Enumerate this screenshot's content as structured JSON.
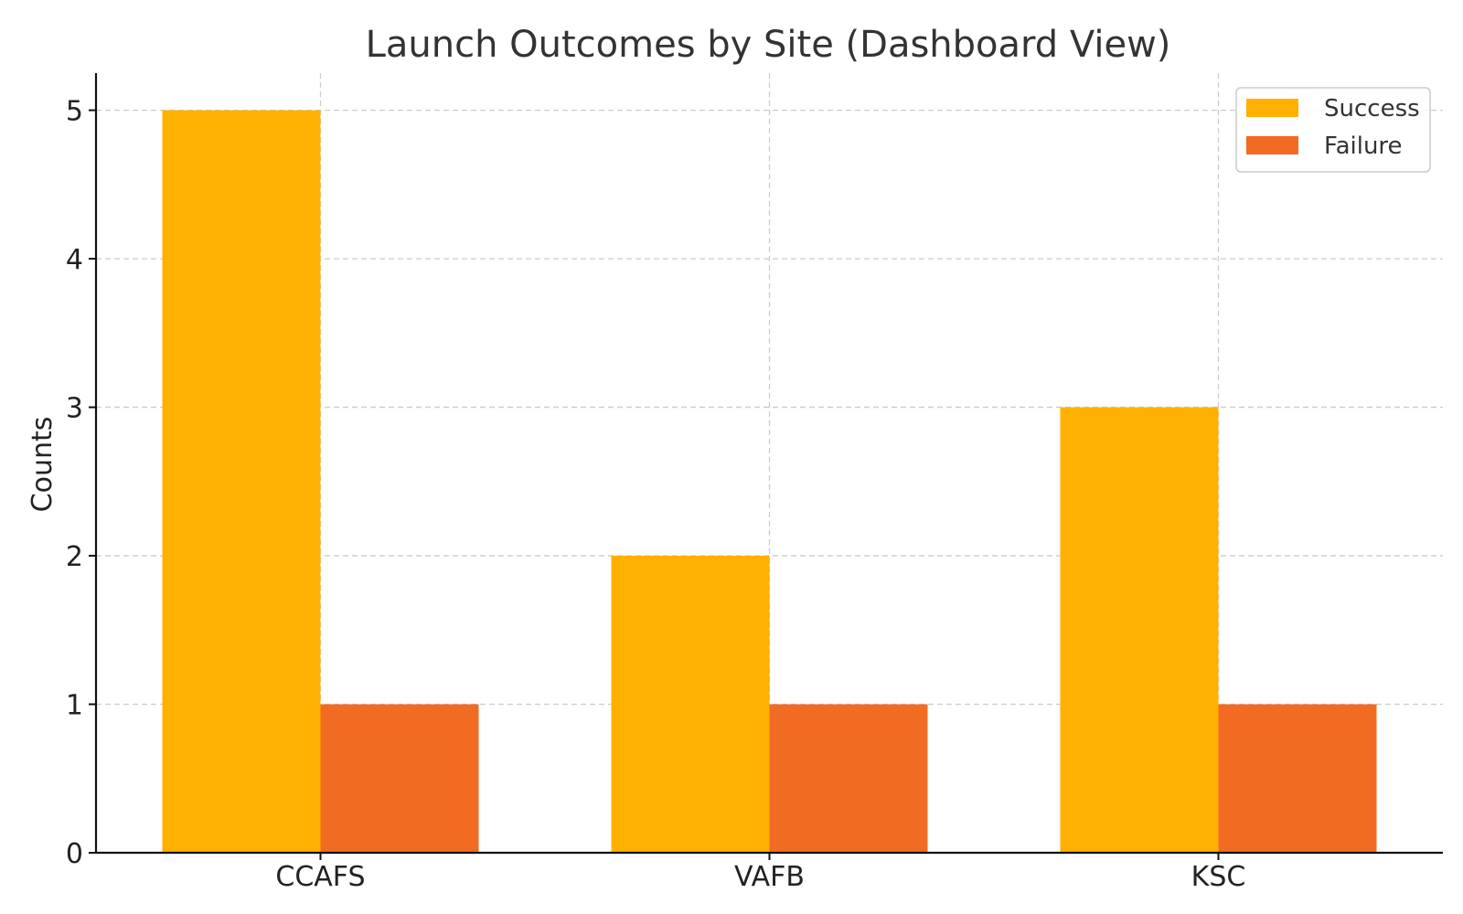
{
  "chart_data": {
    "type": "bar",
    "title": "Launch Outcomes by Site (Dashboard View)",
    "xlabel": "",
    "ylabel": "Counts",
    "categories": [
      "CCAFS",
      "VAFB",
      "KSC"
    ],
    "series": [
      {
        "name": "Success",
        "values": [
          5,
          2,
          3
        ],
        "color": "#FFB000"
      },
      {
        "name": "Failure",
        "values": [
          1,
          1,
          1
        ],
        "color": "#F26B23"
      }
    ],
    "ylim": [
      0,
      5.25
    ],
    "yticks": [
      0,
      1,
      2,
      3,
      4,
      5
    ],
    "grid": true,
    "legend_position": "top-right"
  }
}
